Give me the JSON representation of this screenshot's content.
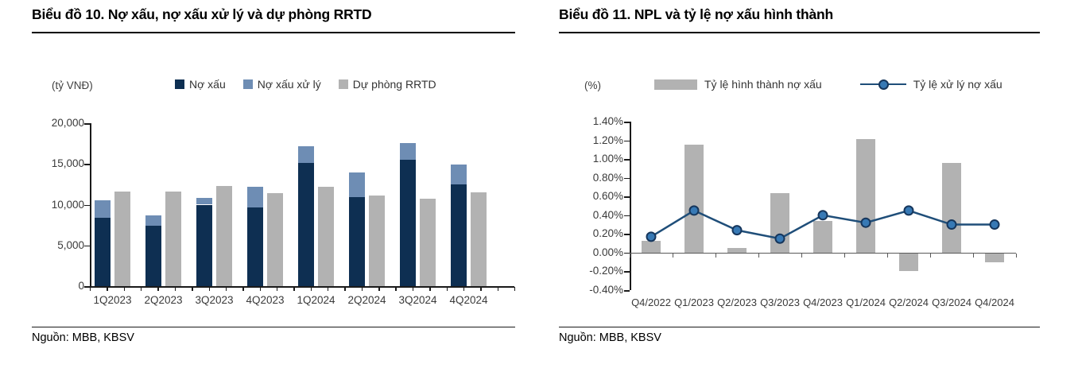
{
  "left_panel": {
    "title": "Biểu đồ 10. Nợ xấu, nợ xấu xử lý và dự phòng RRTD",
    "unit_label": "(tỷ VNĐ)",
    "source": "Nguồn: MBB, KBSV"
  },
  "right_panel": {
    "title": "Biểu đồ 11. NPL và tỷ lệ nợ xấu hình thành",
    "unit_label": "(%)",
    "source": "Nguồn: MBB, KBSV"
  },
  "colors": {
    "navy": "#0e2f52",
    "medium_blue": "#6e8db4",
    "gray": "#b2b2b2",
    "line_navy": "#1f4e79",
    "marker_fill": "#3779b5",
    "marker_stroke": "#16365c",
    "axis": "#1a1a1a",
    "zero_line": "#595959",
    "tick_text": "#3a3a3a"
  },
  "chart_data": [
    {
      "type": "bar",
      "title": "Biểu đồ 10. Nợ xấu, nợ xấu xử lý và dự phòng RRTD",
      "unit": "tỷ VNĐ",
      "categories": [
        "1Q2023",
        "2Q2023",
        "3Q2023",
        "4Q2023",
        "1Q2024",
        "2Q2024",
        "3Q2024",
        "4Q2024"
      ],
      "series": [
        {
          "name": "Nợ xấu",
          "color_key": "navy",
          "stack": "stacked",
          "values": [
            8400,
            7400,
            10000,
            9700,
            15100,
            10900,
            15500,
            12500
          ]
        },
        {
          "name": "Nợ xấu xử lý",
          "color_key": "medium_blue",
          "stack": "stacked",
          "values": [
            2100,
            1250,
            850,
            2450,
            2100,
            3050,
            2100,
            2400
          ]
        },
        {
          "name": "Dự phòng RRTD",
          "color_key": "gray",
          "stack": "separate",
          "values": [
            11600,
            11600,
            12250,
            11400,
            12150,
            11100,
            10700,
            11550
          ]
        }
      ],
      "ylim": [
        0,
        20000
      ],
      "ytick_values": [
        0,
        5000,
        10000,
        15000,
        20000
      ],
      "ytick_labels": [
        "0",
        "5,000",
        "10,000",
        "15,000",
        "20,000"
      ],
      "grid": false,
      "legend_position": "top"
    },
    {
      "type": "bar+line",
      "title": "Biểu đồ 11. NPL và tỷ lệ nợ xấu hình thành",
      "unit": "%",
      "categories": [
        "Q4/2022",
        "Q1/2023",
        "Q2/2023",
        "Q3/2023",
        "Q4/2023",
        "Q1/2024",
        "Q2/2024",
        "Q3/2024",
        "Q4/2024"
      ],
      "bar_series": {
        "name": "Tỷ lệ hình thành nợ xấu",
        "color_key": "gray",
        "values": [
          0.13,
          1.15,
          0.05,
          0.64,
          0.34,
          1.21,
          -0.18,
          0.96,
          -0.09
        ]
      },
      "line_series": {
        "name": "Tỷ lệ xử lý nợ xấu",
        "color_key": "line_navy",
        "values": [
          0.17,
          0.45,
          0.24,
          0.15,
          0.4,
          0.32,
          0.45,
          0.3,
          0.3
        ]
      },
      "ylim": [
        -0.4,
        1.4
      ],
      "ytick_values": [
        -0.4,
        -0.2,
        0.0,
        0.2,
        0.4,
        0.6,
        0.8,
        1.0,
        1.2,
        1.4
      ],
      "ytick_labels": [
        "-0.40%",
        "-0.20%",
        "0.00%",
        "0.20%",
        "0.40%",
        "0.60%",
        "0.80%",
        "1.00%",
        "1.20%",
        "1.40%"
      ],
      "grid": false,
      "legend_position": "top"
    }
  ]
}
